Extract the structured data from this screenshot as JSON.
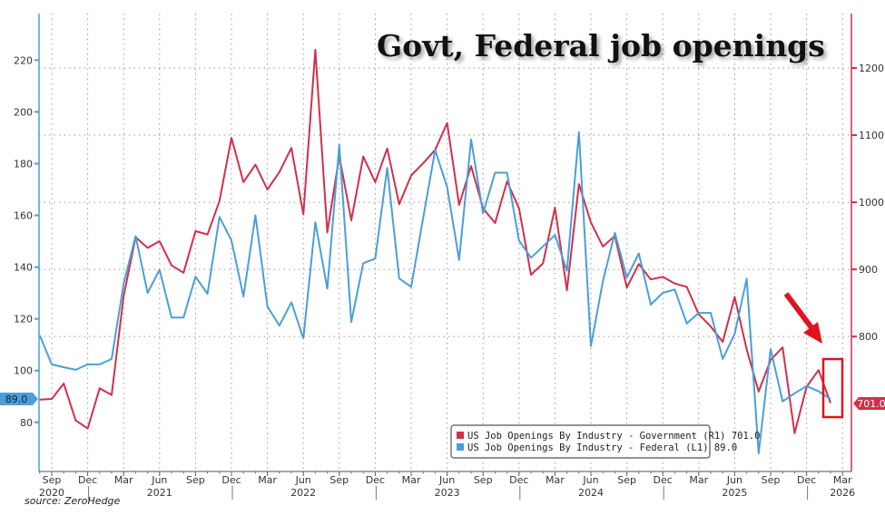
{
  "chart_data": {
    "type": "line",
    "title": "Govt, Federal job openings",
    "source": "source: ZeroHedge",
    "x_start": "2020-08",
    "x_end": "2026-02",
    "x_month_ticks": [
      "Sep",
      "Dec",
      "Mar",
      "Jun",
      "Sep",
      "Dec",
      "Mar",
      "Jun",
      "Sep",
      "Dec",
      "Mar",
      "Jun",
      "Sep",
      "Dec",
      "Mar",
      "Jun",
      "Sep",
      "Dec",
      "Mar",
      "Jun",
      "Sep",
      "Dec",
      "Mar"
    ],
    "x_year_labels": [
      "2020",
      "2021",
      "2022",
      "2023",
      "2024",
      "2025",
      "2026"
    ],
    "left_axis": {
      "ticks": [
        80,
        100,
        120,
        140,
        160,
        180,
        200,
        220
      ],
      "range": [
        61,
        238
      ],
      "last_value_label": "89.0"
    },
    "right_axis": {
      "ticks": [
        800,
        900,
        1000,
        1100,
        1200
      ],
      "range": [
        599,
        1281
      ],
      "last_value_label": "701.0"
    },
    "grid": true,
    "legend_position": "bottom-right",
    "series": [
      {
        "name": "US Job Openings By Industry - Government",
        "axis_label": "(R1)",
        "last_label": "701.0",
        "axis": "right",
        "color": "#d1304b",
        "values": [
          706,
          707,
          730,
          675,
          663,
          723,
          713,
          860,
          948,
          932,
          942,
          906,
          895,
          957,
          952,
          1002,
          1096,
          1030,
          1056,
          1019,
          1045,
          1081,
          982,
          1227,
          955,
          1069,
          973,
          1068,
          1030,
          1080,
          997,
          1040,
          1058,
          1078,
          1118,
          996,
          1054,
          991,
          969,
          1031,
          991,
          892,
          909,
          992,
          869,
          1027,
          970,
          934,
          950,
          873,
          908,
          885,
          889,
          879,
          874,
          833,
          815,
          792,
          859,
          781,
          718,
          765,
          784,
          656,
          725,
          750,
          701
        ]
      },
      {
        "name": "US Job Openings By Industry - Federal",
        "axis_label": "(L1)",
        "last_label": "89.0",
        "axis": "left",
        "color": "#4a9fd8",
        "values": [
          113.6,
          102.4,
          101.3,
          100.3,
          102.4,
          102.4,
          104.5,
          133.5,
          152,
          130,
          139,
          120.5,
          120.5,
          136.3,
          129.7,
          159.4,
          150.3,
          128.6,
          160,
          124.8,
          117.4,
          126.4,
          112.5,
          157.3,
          131.7,
          187.3,
          118.8,
          141.5,
          143.3,
          178.3,
          135.6,
          132.4,
          159,
          185.2,
          171,
          142.8,
          189.3,
          160.8,
          176.5,
          176.5,
          150.3,
          143.6,
          148,
          152.4,
          138.6,
          192.2,
          109.5,
          134.5,
          153.3,
          136,
          145.3,
          125.5,
          130.1,
          131.3,
          118.2,
          122.3,
          122.3,
          104.5,
          114.2,
          135.5,
          68,
          108.3,
          88.1,
          91.2,
          94,
          92,
          89
        ]
      }
    ],
    "annotations": {
      "arrow_color": "#e0141e",
      "highlight_box_color": "#e0141e"
    }
  }
}
